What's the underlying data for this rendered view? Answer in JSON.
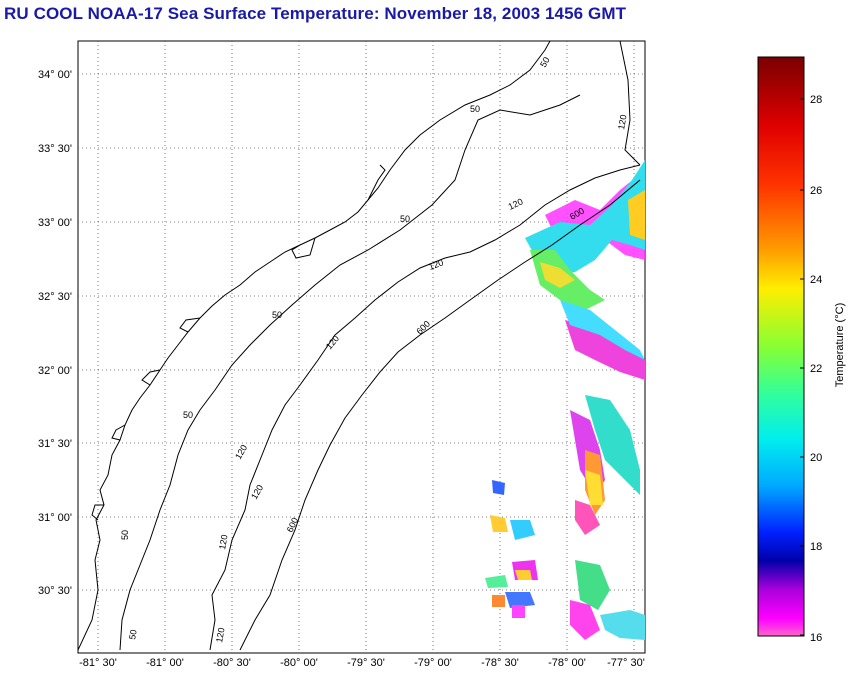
{
  "title": "RU COOL  NOAA-17  Sea Surface Temperature:  November 18, 2003 1456 GMT",
  "map": {
    "lat_labels": [
      "34° 00'",
      "33° 30'",
      "33° 00'",
      "32° 30'",
      "32° 00'",
      "31° 30'",
      "31° 00'",
      "30° 30'"
    ],
    "lon_labels": [
      "-81° 30'",
      "-81° 00'",
      "-80° 30'",
      "-80° 00'",
      "-79° 30'",
      "-79° 00'",
      "-78° 30'",
      "-78° 00'",
      "-77° 30'"
    ],
    "isobath_labels": [
      "50",
      "50",
      "50",
      "50",
      "50",
      "50",
      "50",
      "120",
      "120",
      "120",
      "120",
      "120",
      "120",
      "120",
      "120",
      "600",
      "600",
      "600"
    ]
  },
  "colorbar": {
    "label": "Temperature (°C)",
    "ticks": [
      "28",
      "26",
      "24",
      "22",
      "20",
      "18",
      "16"
    ],
    "colors": [
      "#7a0000",
      "#ff0000",
      "#ff8800",
      "#ffff00",
      "#66ff33",
      "#00ffcc",
      "#00ccff",
      "#0044ff",
      "#0000aa",
      "#8800cc",
      "#ff00ff",
      "#ff66cc"
    ]
  }
}
